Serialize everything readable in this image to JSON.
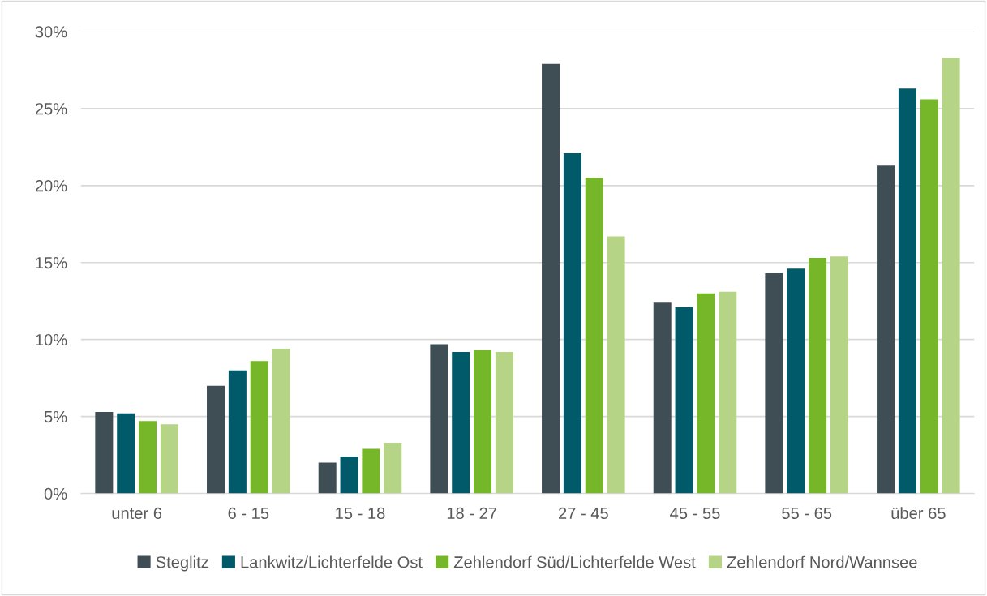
{
  "chart_data": {
    "type": "bar",
    "categories": [
      "unter 6",
      "6 - 15",
      "15 - 18",
      "18 - 27",
      "27 - 45",
      "45 - 55",
      "55 - 65",
      "über 65"
    ],
    "series": [
      {
        "name": "Steglitz",
        "color": "#3f4e55",
        "values": [
          5.3,
          7.0,
          2.0,
          9.7,
          27.9,
          12.4,
          14.3,
          21.3
        ]
      },
      {
        "name": "Lankwitz/Lichterfelde Ost",
        "color": "#005a6a",
        "values": [
          5.2,
          8.0,
          2.4,
          9.2,
          22.1,
          12.1,
          14.6,
          26.3
        ]
      },
      {
        "name": "Zehlendorf Süd/Lichterfelde West",
        "color": "#76b72a",
        "values": [
          4.7,
          8.6,
          2.9,
          9.3,
          20.5,
          13.0,
          15.3,
          25.6
        ]
      },
      {
        "name": "Zehlendorf Nord/Wannsee",
        "color": "#b5d486",
        "values": [
          4.5,
          9.4,
          3.3,
          9.2,
          16.7,
          13.1,
          15.4,
          28.3
        ]
      }
    ],
    "ylim": [
      0,
      30
    ],
    "yticks": [
      {
        "value": 0,
        "label": "0%"
      },
      {
        "value": 5,
        "label": "5%"
      },
      {
        "value": 10,
        "label": "10%"
      },
      {
        "value": 15,
        "label": "15%"
      },
      {
        "value": 20,
        "label": "20%"
      },
      {
        "value": 25,
        "label": "25%"
      },
      {
        "value": 30,
        "label": "30%"
      }
    ],
    "grid": "y",
    "legend": "bottom"
  }
}
